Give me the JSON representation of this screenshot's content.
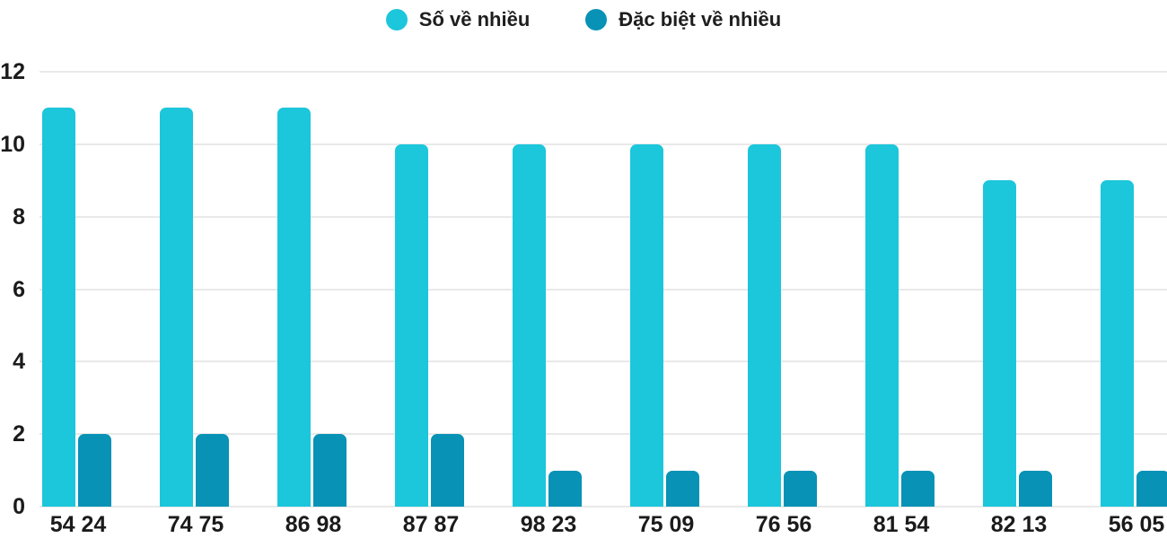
{
  "chart_data": {
    "type": "bar",
    "title": "",
    "xlabel": "",
    "ylabel": "",
    "categories": [
      "54 24",
      "74 75",
      "86 98",
      "87 87",
      "98 23",
      "75 09",
      "76 56",
      "81 54",
      "82 13",
      "56 05"
    ],
    "series": [
      {
        "name": "Số về nhiều",
        "color": "#1cc6db",
        "values": [
          11,
          11,
          11,
          10,
          10,
          10,
          10,
          10,
          9,
          9
        ]
      },
      {
        "name": "Đặc biệt về nhiều",
        "color": "#0792b6",
        "values": [
          2,
          2,
          2,
          2,
          1,
          1,
          1,
          1,
          1,
          1
        ]
      }
    ],
    "ylim": [
      0,
      12
    ],
    "yticks": [
      0,
      2,
      4,
      6,
      8,
      10,
      12
    ],
    "grid": true,
    "gridline_color": "#e9e9e9",
    "legend_position": "top-center",
    "background_color": "#ffffff"
  }
}
